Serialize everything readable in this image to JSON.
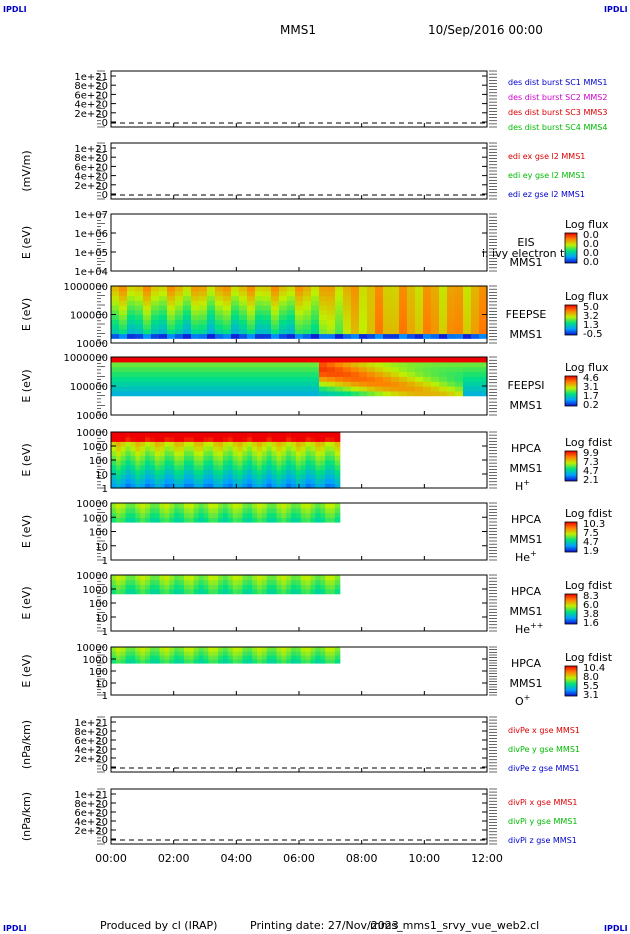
{
  "header": {
    "corner_label": "IPDLI",
    "spacecraft": "MMS1",
    "datetime": "10/Sep/2016 00:00"
  },
  "footer": {
    "produced_by": "Produced by cl (IRAP)",
    "printing_date": "Printing date: 27/Nov/2023",
    "script": "mms_mms1_srvy_vue_web2.cl"
  },
  "chart_data": {
    "type": "heatmap",
    "x_ticks": [
      "00:00",
      "02:00",
      "04:00",
      "06:00",
      "08:00",
      "10:00",
      "12:00"
    ],
    "x_range_hours": [
      0,
      12
    ],
    "panels": [
      {
        "id": "des-dist",
        "kind": "line",
        "ylabel": "",
        "ticks": [
          "1e+21",
          "8e+20",
          "6e+20",
          "4e+20",
          "2e+20",
          "0"
        ],
        "legend": [
          {
            "text": "des dist burst SC1 MMS1",
            "color": "#0000cc"
          },
          {
            "text": "des dist burst SC2 MMS2",
            "color": "#cc00cc"
          },
          {
            "text": "des dist burst SC3 MMS3",
            "color": "#dd0000"
          },
          {
            "text": "des dist burst SC4 MMS4",
            "color": "#00bb00"
          }
        ]
      },
      {
        "id": "edi",
        "kind": "line",
        "ylabel": "(mV/m)",
        "ticks": [
          "1e+21",
          "8e+20",
          "6e+20",
          "4e+20",
          "2e+20",
          "0"
        ],
        "legend": [
          {
            "text": "edi ex gse l2 MMS1",
            "color": "#dd0000"
          },
          {
            "text": "edi ey gse l2 MMS1",
            "color": "#00bb00"
          },
          {
            "text": "edi ez gse l2 MMS1",
            "color": "#0000cc"
          }
        ]
      },
      {
        "id": "eis",
        "kind": "spec",
        "ylabel": "E (eV)",
        "ticks": [
          "1e+07",
          "1e+06",
          "1e+05",
          "1e+04"
        ],
        "instrument": "EIS",
        "instrument_sub": "MMS1",
        "overlay_text": "i. ivy electron to",
        "cbar_title": "Log flux",
        "cbar_ticks": [
          "0.0",
          "0.0",
          "0.0",
          "0.0"
        ],
        "data_end_hours": 0
      },
      {
        "id": "feepse",
        "kind": "spec",
        "ylabel": "E (eV)",
        "ticks": [
          "1000000",
          "100000",
          "10000"
        ],
        "instrument": "FEEPSE",
        "instrument_sub": "MMS1",
        "cbar_title": "Log flux",
        "cbar_ticks": [
          "5.0",
          "3.2",
          "1.3",
          "-0.5"
        ],
        "data_end_hours": 12
      },
      {
        "id": "feepsi",
        "kind": "spec",
        "ylabel": "E (eV)",
        "ticks": [
          "1000000",
          "100000",
          "10000"
        ],
        "instrument": "FEEPSI",
        "instrument_sub": "MMS1",
        "cbar_title": "Log flux",
        "cbar_ticks": [
          "4.6",
          "3.1",
          "1.7",
          "0.2"
        ],
        "data_end_hours": 12
      },
      {
        "id": "hpca-h",
        "kind": "spec",
        "ylabel": "E (eV)",
        "ticks": [
          "10000",
          "1000",
          "100",
          "10",
          "1"
        ],
        "instrument": "HPCA",
        "instrument_sub": "MMS1",
        "species": "H",
        "species_sup": "+",
        "cbar_title": "Log fdist",
        "cbar_ticks": [
          "9.9",
          "7.3",
          "4.7",
          "2.1"
        ],
        "data_end_hours": 7.3
      },
      {
        "id": "hpca-he1",
        "kind": "spec",
        "ylabel": "E (eV)",
        "ticks": [
          "10000",
          "1000",
          "100",
          "10",
          "1"
        ],
        "instrument": "HPCA",
        "instrument_sub": "MMS1",
        "species": "He",
        "species_sup": "+",
        "cbar_title": "Log fdist",
        "cbar_ticks": [
          "10.3",
          "7.5",
          "4.7",
          "1.9"
        ],
        "data_end_hours": 7.3
      },
      {
        "id": "hpca-he2",
        "kind": "spec",
        "ylabel": "E (eV)",
        "ticks": [
          "10000",
          "1000",
          "100",
          "10",
          "1"
        ],
        "instrument": "HPCA",
        "instrument_sub": "MMS1",
        "species": "He",
        "species_sup": "++",
        "cbar_title": "Log fdist",
        "cbar_ticks": [
          "8.3",
          "6.0",
          "3.8",
          "1.6"
        ],
        "data_end_hours": 7.3
      },
      {
        "id": "hpca-o",
        "kind": "spec",
        "ylabel": "E (eV)",
        "ticks": [
          "10000",
          "1000",
          "100",
          "10",
          "1"
        ],
        "instrument": "HPCA",
        "instrument_sub": "MMS1",
        "species": "O",
        "species_sup": "+",
        "cbar_title": "Log fdist",
        "cbar_ticks": [
          "10.4",
          "8.0",
          "5.5",
          "3.1"
        ],
        "data_end_hours": 7.3
      },
      {
        "id": "divpe",
        "kind": "line",
        "ylabel": "(nPa/km)",
        "ticks": [
          "1e+21",
          "8e+20",
          "6e+20",
          "4e+20",
          "2e+20",
          "0"
        ],
        "legend": [
          {
            "text": "divPe x gse MMS1",
            "color": "#dd0000"
          },
          {
            "text": "divPe y gse MMS1",
            "color": "#00bb00"
          },
          {
            "text": "divPe z gse MMS1",
            "color": "#0000cc"
          }
        ]
      },
      {
        "id": "divpi",
        "kind": "line",
        "ylabel": "(nPa/km)",
        "ticks": [
          "1e+21",
          "8e+20",
          "6e+20",
          "4e+20",
          "2e+20",
          "0"
        ],
        "legend": [
          {
            "text": "divPi x gse MMS1",
            "color": "#dd0000"
          },
          {
            "text": "divPi y gse MMS1",
            "color": "#00bb00"
          },
          {
            "text": "divPi z gse MMS1",
            "color": "#0000cc"
          }
        ]
      }
    ]
  }
}
